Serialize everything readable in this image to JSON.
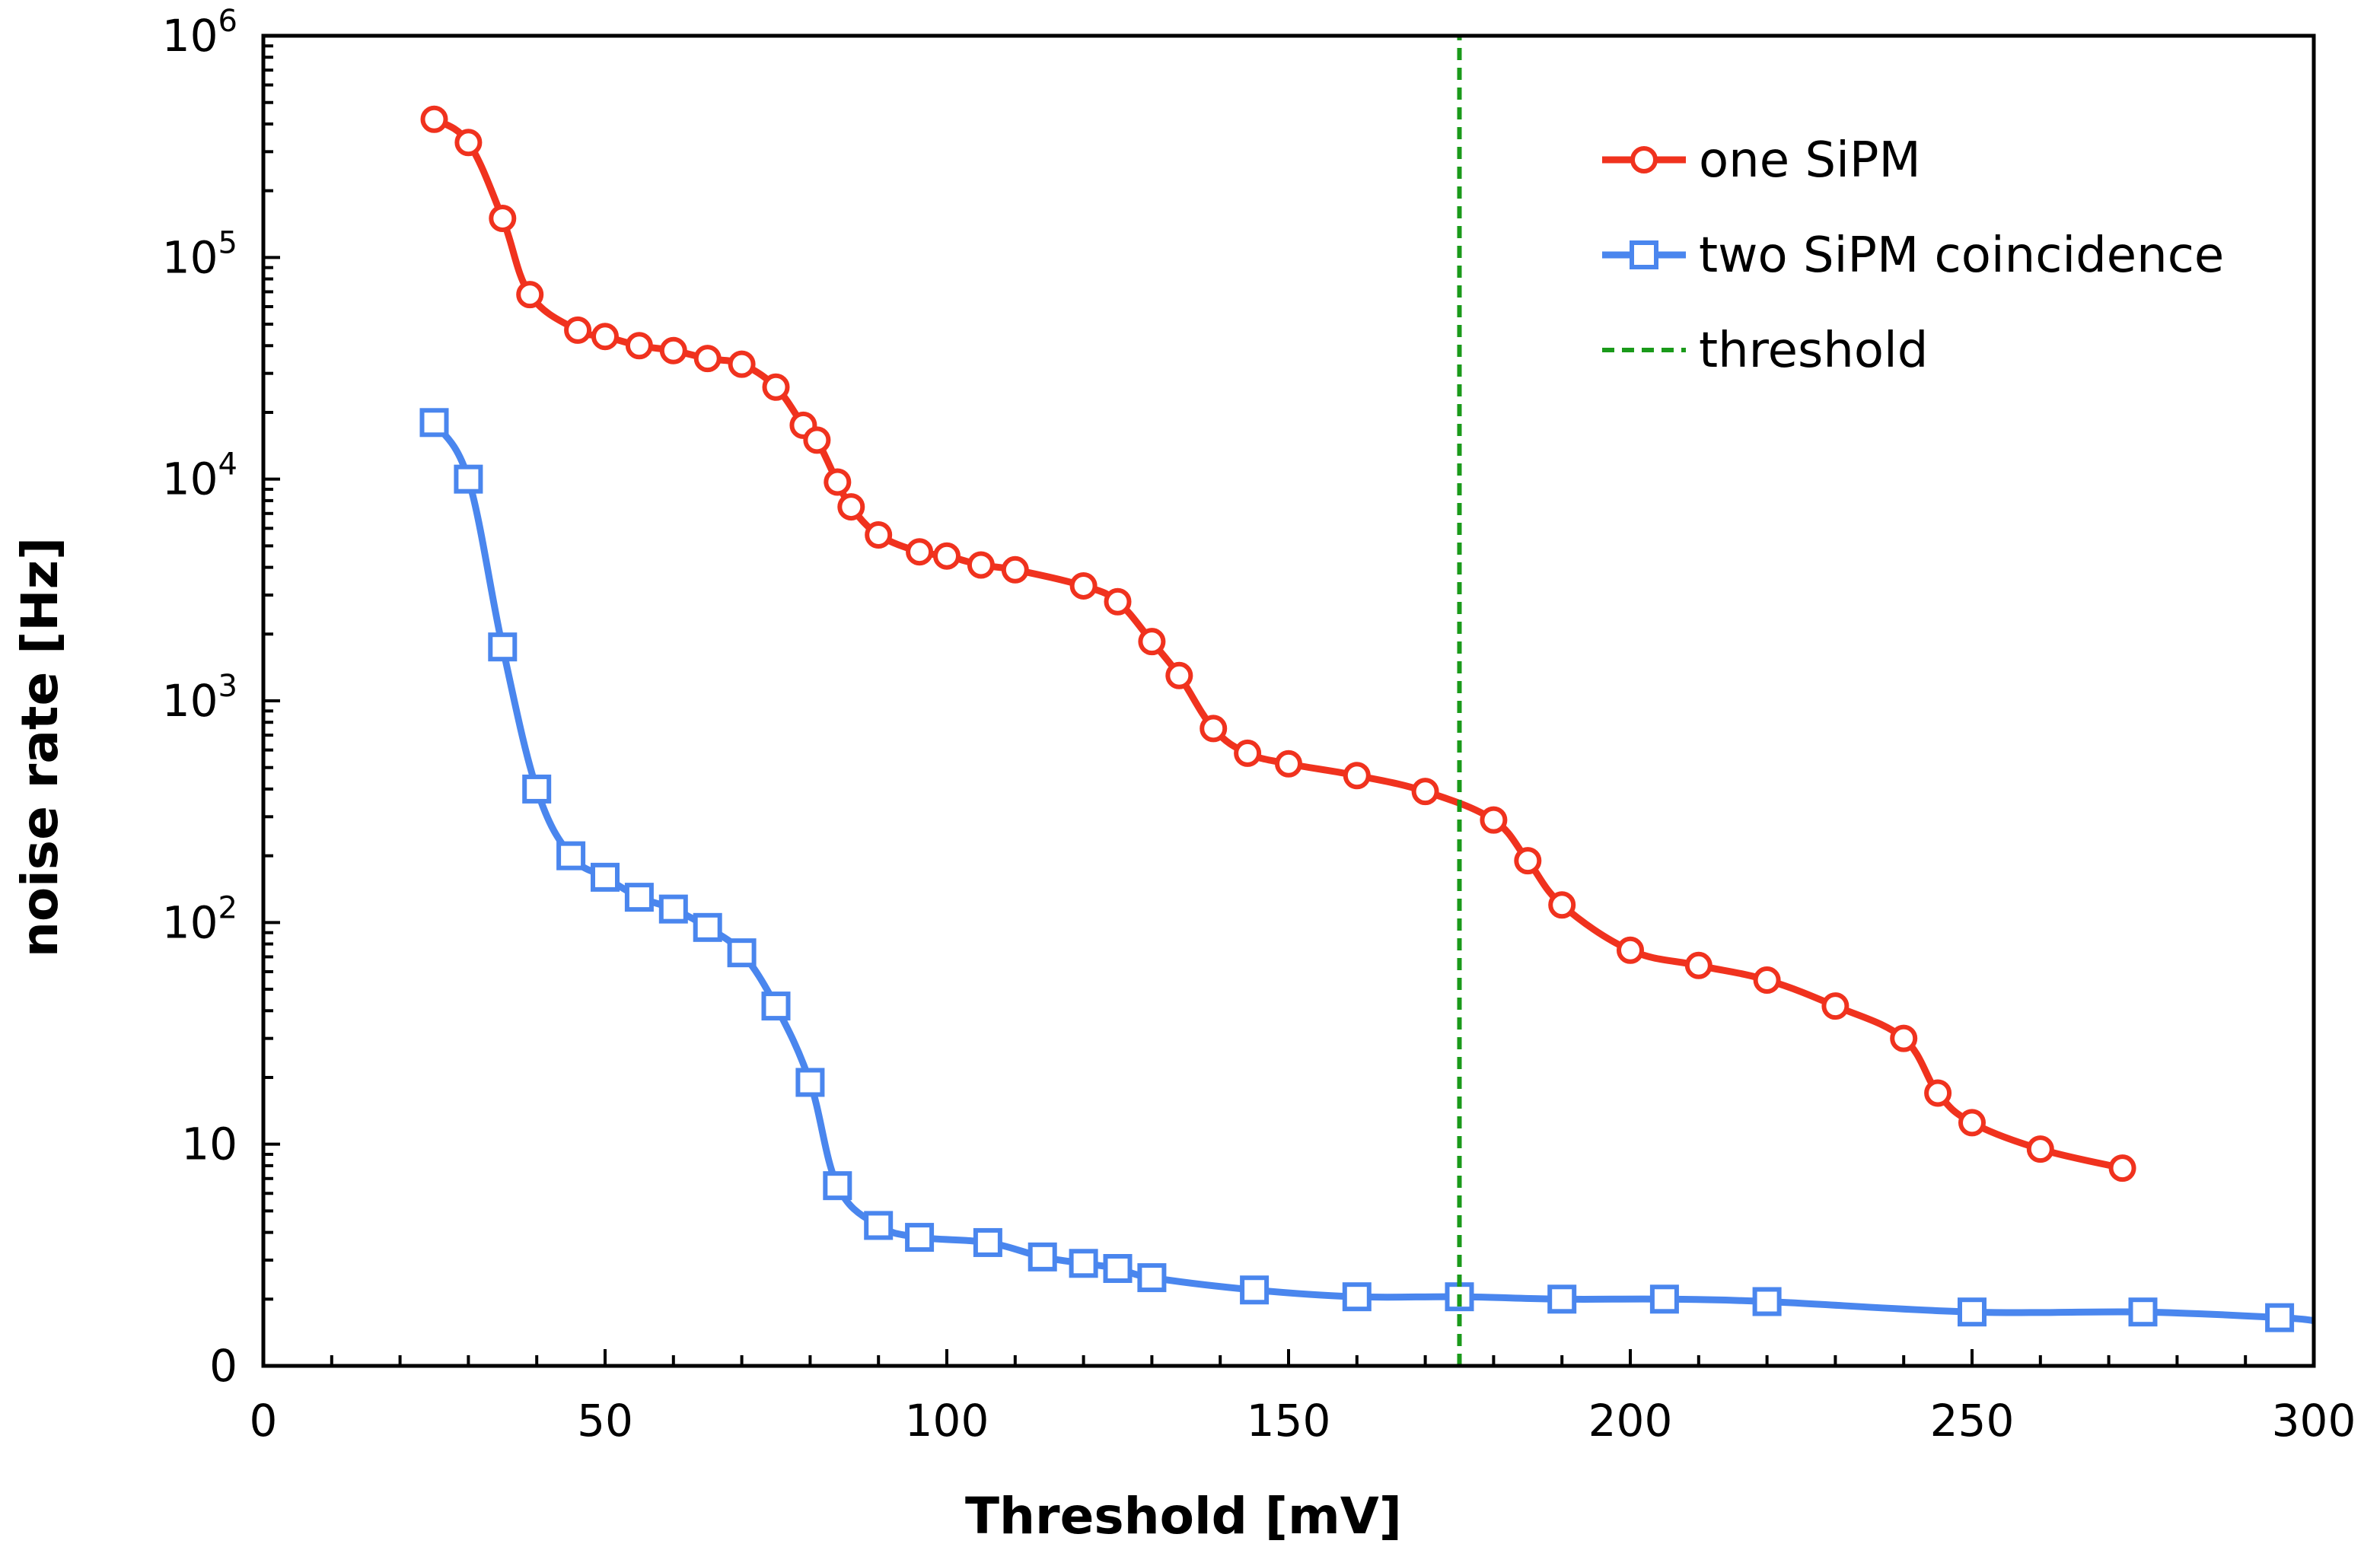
{
  "chart_data": {
    "type": "line",
    "xlabel": "Threshold [mV]",
    "ylabel": "noise rate [Hz]",
    "xlim": [
      0,
      300
    ],
    "ylim": [
      1,
      1000000
    ],
    "yscale": "log",
    "x_ticks": [
      0,
      50,
      100,
      150,
      200,
      250,
      300
    ],
    "x_tick_labels": [
      "0",
      "50",
      "100",
      "150",
      "200",
      "250",
      "300"
    ],
    "y_ticks": [
      {
        "value": 1,
        "base": "0",
        "exp": ""
      },
      {
        "value": 10,
        "base": "10",
        "exp": ""
      },
      {
        "value": 100,
        "base": "10",
        "exp": "2"
      },
      {
        "value": 1000,
        "base": "10",
        "exp": "3"
      },
      {
        "value": 10000,
        "base": "10",
        "exp": "4"
      },
      {
        "value": 100000,
        "base": "10",
        "exp": "5"
      },
      {
        "value": 1000000,
        "base": "10",
        "exp": "6"
      }
    ],
    "legend_position": "top-right",
    "series": [
      {
        "name": "one SiPM",
        "color": "#f0321e",
        "marker": "circle",
        "x": [
          25,
          30,
          35,
          39,
          46,
          50,
          55,
          60,
          65,
          70,
          75,
          79,
          81,
          84,
          86,
          90,
          96,
          100,
          105,
          110,
          120,
          125,
          130,
          134,
          139,
          144,
          150,
          160,
          170,
          180,
          185,
          190,
          200,
          210,
          220,
          230,
          240,
          245,
          250,
          260,
          272
        ],
        "y": [
          420000,
          330000,
          150000,
          68000,
          47000,
          44000,
          40000,
          38000,
          35000,
          33000,
          26000,
          17500,
          15000,
          9700,
          7500,
          5600,
          4700,
          4500,
          4100,
          3900,
          3300,
          2800,
          1850,
          1300,
          750,
          580,
          520,
          460,
          390,
          290,
          190,
          120,
          75,
          64,
          55,
          42,
          30,
          17,
          12.5,
          9.5,
          7.8
        ]
      },
      {
        "name": "two SiPM coincidence",
        "color": "#4a86ee",
        "marker": "square",
        "x": [
          25,
          30,
          35,
          40,
          45,
          50,
          55,
          60,
          65,
          70,
          75,
          80,
          84,
          90,
          96,
          106,
          114,
          120,
          125,
          130,
          145,
          160,
          175,
          190,
          205,
          220,
          250,
          275,
          295,
          300
        ],
        "y": [
          18000,
          10000,
          1750,
          400,
          200,
          160,
          130,
          115,
          95,
          73,
          42,
          19,
          6.5,
          4.3,
          3.8,
          3.6,
          3.1,
          2.9,
          2.75,
          2.5,
          2.2,
          2.05,
          2.05,
          2.0,
          2.0,
          1.95,
          1.75,
          1.75,
          1.65,
          1.6
        ]
      },
      {
        "name": "threshold",
        "color": "#1a9a1a",
        "marker": "none",
        "style": "dashed",
        "x": [
          175,
          175
        ],
        "y": [
          1,
          1000000
        ]
      }
    ]
  }
}
